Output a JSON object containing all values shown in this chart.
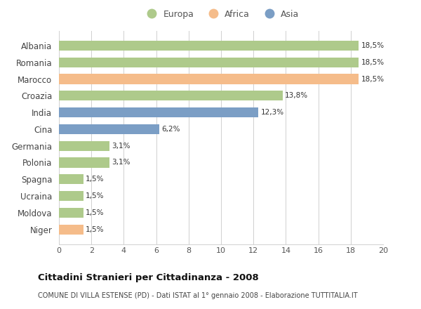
{
  "countries": [
    "Albania",
    "Romania",
    "Marocco",
    "Croazia",
    "India",
    "Cina",
    "Germania",
    "Polonia",
    "Spagna",
    "Ucraina",
    "Moldova",
    "Niger"
  ],
  "values": [
    18.5,
    18.5,
    18.5,
    13.8,
    12.3,
    6.2,
    3.1,
    3.1,
    1.5,
    1.5,
    1.5,
    1.5
  ],
  "labels": [
    "18,5%",
    "18,5%",
    "18,5%",
    "13,8%",
    "12,3%",
    "6,2%",
    "3,1%",
    "3,1%",
    "1,5%",
    "1,5%",
    "1,5%",
    "1,5%"
  ],
  "continents": [
    "Europa",
    "Europa",
    "Africa",
    "Europa",
    "Asia",
    "Asia",
    "Europa",
    "Europa",
    "Europa",
    "Europa",
    "Europa",
    "Africa"
  ],
  "colors": {
    "Europa": "#aeca8b",
    "Africa": "#f5bc8a",
    "Asia": "#7b9ec5"
  },
  "legend_order": [
    "Europa",
    "Africa",
    "Asia"
  ],
  "xlim": [
    0,
    20
  ],
  "xticks": [
    0,
    2,
    4,
    6,
    8,
    10,
    12,
    14,
    16,
    18,
    20
  ],
  "title": "Cittadini Stranieri per Cittadinanza - 2008",
  "subtitle": "COMUNE DI VILLA ESTENSE (PD) - Dati ISTAT al 1° gennaio 2008 - Elaborazione TUTTITALIA.IT",
  "background_color": "#ffffff",
  "grid_color": "#d0d0d0"
}
